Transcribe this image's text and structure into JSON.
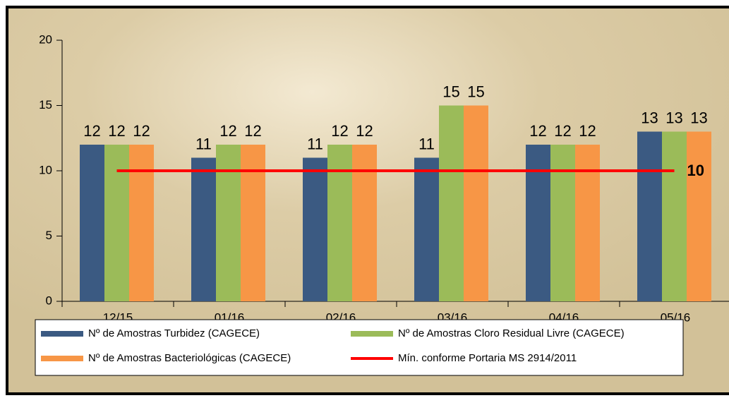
{
  "chart_data": {
    "type": "bar",
    "categories": [
      "12/15",
      "01/16",
      "02/16",
      "03/16",
      "04/16",
      "05/16"
    ],
    "series": [
      {
        "name": "Nº de Amostras Turbidez (CAGECE)",
        "color": "#3b5a82",
        "values": [
          12,
          11,
          11,
          11,
          12,
          13
        ]
      },
      {
        "name": "Nº de Amostras Cloro Residual Livre (CAGECE)",
        "color": "#9bbb59",
        "values": [
          12,
          12,
          12,
          15,
          12,
          13
        ]
      },
      {
        "name": "Nº de Amostras Bacteriológicas (CAGECE)",
        "color": "#f79646",
        "values": [
          12,
          12,
          12,
          15,
          12,
          13
        ]
      }
    ],
    "line_series": {
      "name": "Mín. conforme Portaria MS 2914/2011",
      "color": "#ff0000",
      "values": [
        10,
        10,
        10,
        10,
        10,
        10
      ],
      "label": "10"
    },
    "ylim": [
      0,
      20
    ],
    "yticks": [
      0,
      5,
      10,
      15,
      20
    ]
  }
}
